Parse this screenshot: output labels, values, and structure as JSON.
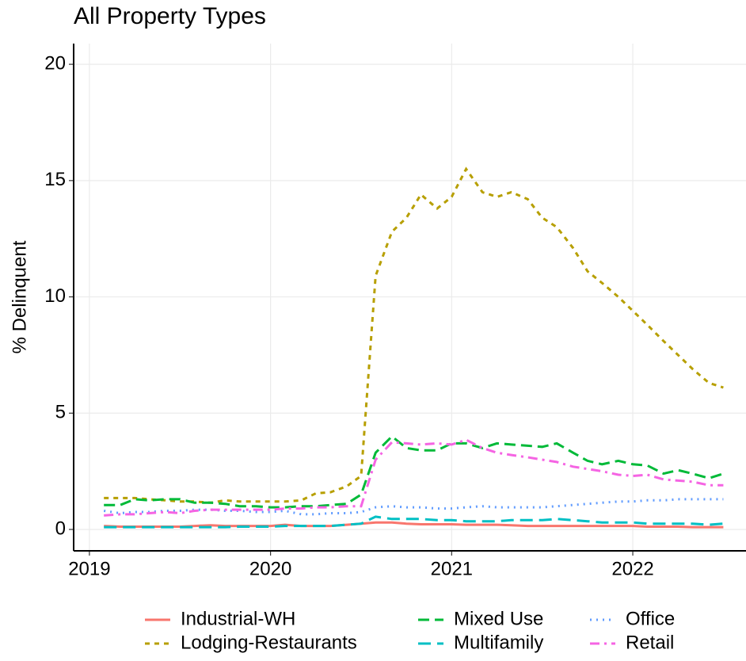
{
  "chart_data": {
    "type": "line",
    "title": "All Property Types",
    "y_label": "% Delinquent",
    "x": [
      2019.08,
      2019.17,
      2019.25,
      2019.33,
      2019.42,
      2019.5,
      2019.58,
      2019.67,
      2019.75,
      2019.83,
      2019.92,
      2020,
      2020.08,
      2020.17,
      2020.25,
      2020.33,
      2020.42,
      2020.5,
      2020.58,
      2020.67,
      2020.75,
      2020.83,
      2020.92,
      2021,
      2021.08,
      2021.17,
      2021.25,
      2021.33,
      2021.42,
      2021.5,
      2021.58,
      2021.67,
      2021.75,
      2021.83,
      2021.92,
      2022,
      2022.08,
      2022.17,
      2022.25,
      2022.33,
      2022.42,
      2022.5
    ],
    "series": [
      {
        "name": "Industrial-WH",
        "color": "#f8766d",
        "linestyle": "solid",
        "values": [
          0.15,
          0.12,
          0.12,
          0.12,
          0.12,
          0.12,
          0.15,
          0.18,
          0.15,
          0.15,
          0.15,
          0.15,
          0.2,
          0.15,
          0.15,
          0.15,
          0.2,
          0.25,
          0.3,
          0.3,
          0.25,
          0.22,
          0.22,
          0.22,
          0.2,
          0.2,
          0.2,
          0.18,
          0.15,
          0.15,
          0.15,
          0.15,
          0.15,
          0.15,
          0.15,
          0.15,
          0.12,
          0.12,
          0.12,
          0.1,
          0.1,
          0.1
        ]
      },
      {
        "name": "Lodging-Restaurants",
        "color": "#b79f00",
        "linestyle": "dashed",
        "values": [
          1.35,
          1.35,
          1.35,
          1.3,
          1.25,
          1.2,
          1.2,
          1.15,
          1.25,
          1.2,
          1.2,
          1.2,
          1.2,
          1.25,
          1.55,
          1.6,
          1.85,
          2.3,
          10.9,
          12.8,
          13.4,
          14.4,
          13.8,
          14.3,
          15.5,
          14.5,
          14.3,
          14.5,
          14.2,
          13.4,
          13.0,
          12.1,
          11.1,
          10.6,
          10.0,
          9.4,
          8.8,
          8.1,
          7.5,
          6.9,
          6.3,
          6.1
        ]
      },
      {
        "name": "Mixed Use",
        "color": "#00ba38",
        "linestyle": "longdash",
        "values": [
          1.05,
          1.05,
          1.3,
          1.25,
          1.3,
          1.3,
          1.15,
          1.15,
          1.1,
          1.0,
          1.0,
          0.95,
          0.95,
          1.0,
          1.0,
          1.05,
          1.1,
          1.5,
          3.3,
          4.0,
          3.5,
          3.4,
          3.4,
          3.7,
          3.7,
          3.5,
          3.7,
          3.65,
          3.6,
          3.55,
          3.7,
          3.3,
          2.95,
          2.8,
          2.95,
          2.8,
          2.75,
          2.4,
          2.55,
          2.4,
          2.2,
          2.4
        ]
      },
      {
        "name": "Multifamily",
        "color": "#00bfc4",
        "linestyle": "twodash",
        "values": [
          0.1,
          0.1,
          0.1,
          0.1,
          0.1,
          0.1,
          0.1,
          0.1,
          0.1,
          0.12,
          0.12,
          0.12,
          0.15,
          0.15,
          0.15,
          0.15,
          0.2,
          0.25,
          0.55,
          0.45,
          0.45,
          0.45,
          0.4,
          0.4,
          0.35,
          0.35,
          0.35,
          0.4,
          0.4,
          0.4,
          0.45,
          0.4,
          0.35,
          0.3,
          0.3,
          0.3,
          0.25,
          0.25,
          0.25,
          0.25,
          0.2,
          0.25
        ]
      },
      {
        "name": "Office",
        "color": "#619cff",
        "linestyle": "dotted",
        "values": [
          0.8,
          0.7,
          0.75,
          0.75,
          0.8,
          0.8,
          0.85,
          0.85,
          0.8,
          0.8,
          0.75,
          0.75,
          0.8,
          0.65,
          0.65,
          0.7,
          0.7,
          0.75,
          0.95,
          1.0,
          0.95,
          0.95,
          0.9,
          0.9,
          0.95,
          1.0,
          0.95,
          0.95,
          0.95,
          0.95,
          1.0,
          1.05,
          1.1,
          1.15,
          1.2,
          1.2,
          1.25,
          1.25,
          1.3,
          1.3,
          1.3,
          1.3
        ]
      },
      {
        "name": "Retail",
        "color": "#f564e3",
        "linestyle": "dotdash",
        "values": [
          0.6,
          0.65,
          0.65,
          0.7,
          0.75,
          0.7,
          0.8,
          0.85,
          0.85,
          0.85,
          0.85,
          0.85,
          0.9,
          0.9,
          0.95,
          0.95,
          1.0,
          1.0,
          3.0,
          3.75,
          3.7,
          3.65,
          3.7,
          3.65,
          3.85,
          3.5,
          3.3,
          3.2,
          3.1,
          3.0,
          2.9,
          2.7,
          2.6,
          2.5,
          2.35,
          2.3,
          2.35,
          2.15,
          2.1,
          2.05,
          1.9,
          1.9
        ]
      }
    ],
    "xlim": [
      2018.913,
      2022.625
    ],
    "xticks": [
      2019,
      2020,
      2021,
      2022
    ],
    "ylim": [
      -0.92,
      20.89
    ],
    "yticks": [
      0,
      5,
      10,
      15,
      20
    ],
    "grid": true,
    "legend": "bottom"
  }
}
